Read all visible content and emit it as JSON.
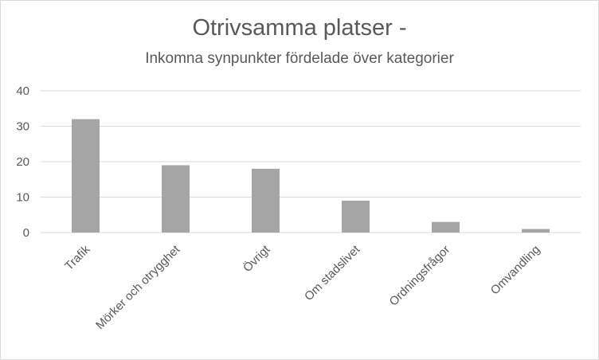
{
  "chart_data": {
    "type": "bar",
    "title": "Otrivsamma platser -",
    "subtitle": "Inkomna synpunkter fördelade över kategorier",
    "xlabel": "",
    "ylabel": "",
    "categories": [
      "Trafik",
      "Mörker och otrygghet",
      "Övrigt",
      "Om stadslivet",
      "Ordningsfrågor",
      "Omvandling"
    ],
    "values": [
      32,
      19,
      18,
      9,
      3,
      1
    ],
    "ylim": [
      0,
      40
    ],
    "yticks": [
      0,
      10,
      20,
      30,
      40
    ],
    "grid": true,
    "legend": "none",
    "bar_color": "#a5a5a5",
    "grid_color": "#d9d9d9",
    "text_color": "#595959"
  }
}
